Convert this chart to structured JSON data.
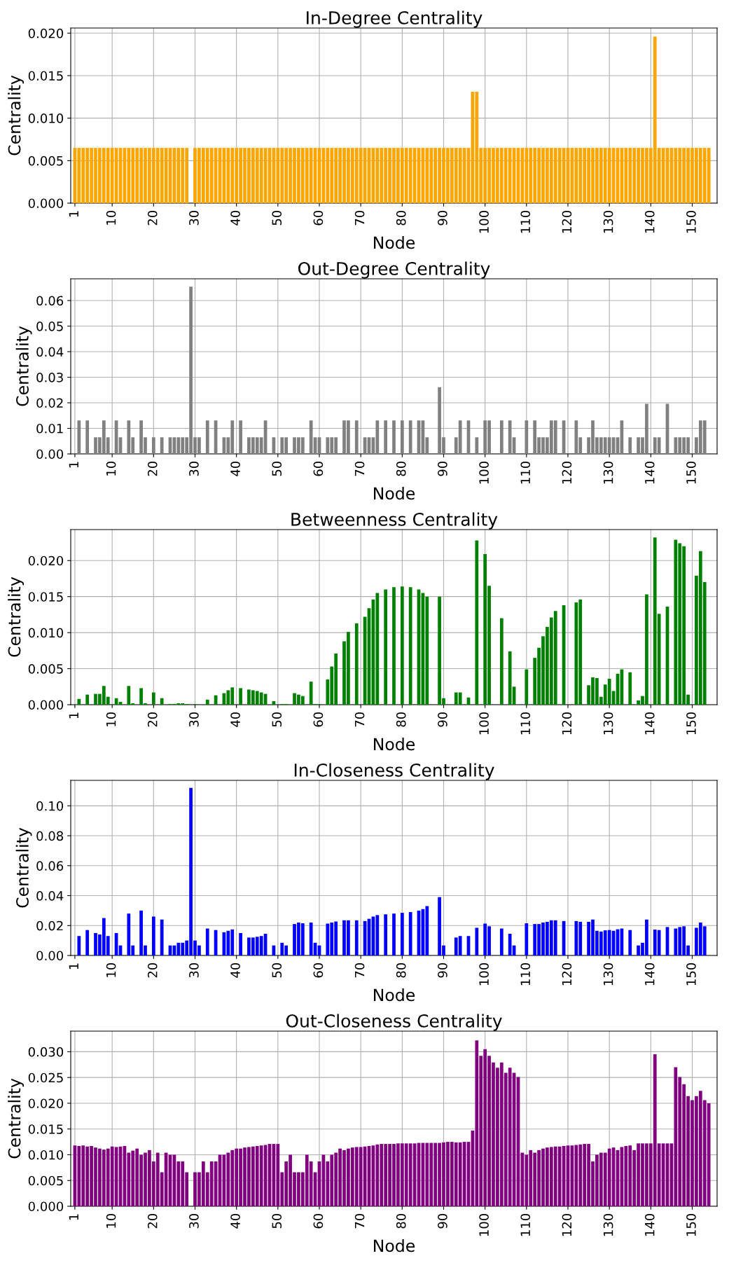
{
  "chart_data": [
    {
      "type": "bar",
      "title": "In-Degree Centrality",
      "xlabel": "Node",
      "ylabel": "Centrality",
      "color": "#ffa500",
      "grid": true,
      "x": [
        1,
        2,
        3,
        4,
        5,
        6,
        7,
        8,
        9,
        10,
        11,
        12,
        13,
        14,
        15,
        16,
        17,
        18,
        19,
        20,
        21,
        22,
        23,
        24,
        25,
        26,
        27,
        28,
        29,
        30,
        31,
        32,
        33,
        34,
        35,
        36,
        37,
        38,
        39,
        40,
        41,
        42,
        43,
        44,
        45,
        46,
        47,
        48,
        49,
        50,
        51,
        52,
        53,
        54,
        55,
        56,
        57,
        58,
        59,
        60,
        61,
        62,
        63,
        64,
        65,
        66,
        67,
        68,
        69,
        70,
        71,
        72,
        73,
        74,
        75,
        76,
        77,
        78,
        79,
        80,
        81,
        82,
        83,
        84,
        85,
        86,
        87,
        88,
        89,
        90,
        91,
        92,
        93,
        94,
        95,
        96,
        97,
        98,
        99,
        100,
        101,
        102,
        103,
        104,
        105,
        106,
        107,
        108,
        109,
        110,
        111,
        112,
        113,
        114,
        115,
        116,
        117,
        118,
        119,
        120,
        121,
        122,
        123,
        124,
        125,
        126,
        127,
        128,
        129,
        130,
        131,
        132,
        133,
        134,
        135,
        136,
        137,
        138,
        139,
        140,
        141,
        142,
        143,
        144,
        145,
        146,
        147,
        148,
        149,
        150,
        151,
        152,
        153,
        154
      ],
      "values": [
        0.0065,
        0.0065,
        0.0065,
        0.0065,
        0.0065,
        0.0065,
        0.0065,
        0.0065,
        0.0065,
        0.0065,
        0.0065,
        0.0065,
        0.0065,
        0.0065,
        0.0065,
        0.0065,
        0.0065,
        0.0065,
        0.0065,
        0.0065,
        0.0065,
        0.0065,
        0.0065,
        0.0065,
        0.0065,
        0.0065,
        0.0065,
        0.0065,
        0,
        0.0065,
        0.0065,
        0.0065,
        0.0065,
        0.0065,
        0.0065,
        0.0065,
        0.0065,
        0.0065,
        0.0065,
        0.0065,
        0.0065,
        0.0065,
        0.0065,
        0.0065,
        0.0065,
        0.0065,
        0.0065,
        0.0065,
        0.0065,
        0.0065,
        0.0065,
        0.0065,
        0.0065,
        0.0065,
        0.0065,
        0.0065,
        0.0065,
        0.0065,
        0.0065,
        0.0065,
        0.0065,
        0.0065,
        0.0065,
        0.0065,
        0.0065,
        0.0065,
        0.0065,
        0.0065,
        0.0065,
        0.0065,
        0.0065,
        0.0065,
        0.0065,
        0.0065,
        0.0065,
        0.0065,
        0.0065,
        0.0065,
        0.0065,
        0.0065,
        0.0065,
        0.0065,
        0.0065,
        0.0065,
        0.0065,
        0.0065,
        0.0065,
        0.0065,
        0.0065,
        0.0065,
        0.0065,
        0.0065,
        0.0065,
        0.0065,
        0.0065,
        0.0065,
        0.0131,
        0.0131,
        0.0065,
        0.0065,
        0.0065,
        0.0065,
        0.0065,
        0.0065,
        0.0065,
        0.0065,
        0.0065,
        0.0065,
        0.0065,
        0.0065,
        0.0065,
        0.0065,
        0.0065,
        0.0065,
        0.0065,
        0.0065,
        0.0065,
        0.0065,
        0.0065,
        0.0065,
        0.0065,
        0.0065,
        0.0065,
        0.0065,
        0.0065,
        0.0065,
        0.0065,
        0.0065,
        0.0065,
        0.0065,
        0.0065,
        0.0065,
        0.0065,
        0.0065,
        0.0065,
        0.0065,
        0.0065,
        0.0065,
        0.0065,
        0.0065,
        0.0196,
        0.0065,
        0.0065,
        0.0065,
        0.0065,
        0.0065,
        0.0065,
        0.0065,
        0.0065,
        0.0065,
        0.0065,
        0.0065,
        0.0065,
        0.0065
      ],
      "xlim": [
        0,
        156
      ],
      "xticks": [
        1,
        10,
        20,
        30,
        40,
        50,
        60,
        70,
        80,
        90,
        100,
        110,
        120,
        130,
        140,
        150
      ],
      "ylim": [
        0,
        0.0206
      ],
      "yticks": [
        {
          "value": 0,
          "label": "0.000"
        },
        {
          "value": 0.005,
          "label": "0.005"
        },
        {
          "value": 0.01,
          "label": "0.010"
        },
        {
          "value": 0.015,
          "label": "0.015"
        },
        {
          "value": 0.02,
          "label": "0.020"
        }
      ]
    },
    {
      "type": "bar",
      "title": "Out-Degree Centrality",
      "xlabel": "Node",
      "ylabel": "Centrality",
      "color": "#808080",
      "grid": true,
      "x": [
        1,
        2,
        3,
        4,
        5,
        6,
        7,
        8,
        9,
        10,
        11,
        12,
        13,
        14,
        15,
        16,
        17,
        18,
        19,
        20,
        21,
        22,
        23,
        24,
        25,
        26,
        27,
        28,
        29,
        30,
        31,
        32,
        33,
        34,
        35,
        36,
        37,
        38,
        39,
        40,
        41,
        42,
        43,
        44,
        45,
        46,
        47,
        48,
        49,
        50,
        51,
        52,
        53,
        54,
        55,
        56,
        57,
        58,
        59,
        60,
        61,
        62,
        63,
        64,
        65,
        66,
        67,
        68,
        69,
        70,
        71,
        72,
        73,
        74,
        75,
        76,
        77,
        78,
        79,
        80,
        81,
        82,
        83,
        84,
        85,
        86,
        87,
        88,
        89,
        90,
        91,
        92,
        93,
        94,
        95,
        96,
        97,
        98,
        99,
        100,
        101,
        102,
        103,
        104,
        105,
        106,
        107,
        108,
        109,
        110,
        111,
        112,
        113,
        114,
        115,
        116,
        117,
        118,
        119,
        120,
        121,
        122,
        123,
        124,
        125,
        126,
        127,
        128,
        129,
        130,
        131,
        132,
        133,
        134,
        135,
        136,
        137,
        138,
        139,
        140,
        141,
        142,
        143,
        144,
        145,
        146,
        147,
        148,
        149,
        150,
        151,
        152,
        153,
        154
      ],
      "values": [
        0,
        0.0131,
        0,
        0.0131,
        0,
        0.0065,
        0.0065,
        0.0131,
        0.0065,
        0,
        0.0131,
        0.0065,
        0,
        0.0131,
        0.0065,
        0,
        0.0131,
        0.0065,
        0,
        0.0065,
        0,
        0.0065,
        0,
        0.0065,
        0.0065,
        0.0065,
        0.0065,
        0.0065,
        0.0654,
        0.0065,
        0.0065,
        0,
        0.0131,
        0,
        0.0131,
        0,
        0.0065,
        0.0065,
        0.0131,
        0,
        0.0131,
        0,
        0.0065,
        0.0065,
        0.0065,
        0.0065,
        0.0131,
        0,
        0.0065,
        0,
        0.0065,
        0.0065,
        0,
        0.0065,
        0.0065,
        0.0065,
        0,
        0.0131,
        0.0065,
        0.0065,
        0,
        0.0065,
        0.0065,
        0.0065,
        0,
        0.0131,
        0.0131,
        0,
        0.0131,
        0,
        0.0065,
        0.0065,
        0.0065,
        0.0131,
        0,
        0.0131,
        0,
        0.0131,
        0,
        0.0131,
        0,
        0.0131,
        0,
        0.0131,
        0.0131,
        0.0065,
        0,
        0,
        0.0261,
        0.0065,
        0,
        0,
        0.0065,
        0.0131,
        0,
        0.0131,
        0,
        0.0065,
        0,
        0.0131,
        0.0131,
        0,
        0,
        0.0131,
        0,
        0.0131,
        0.0065,
        0,
        0,
        0.0131,
        0,
        0.0131,
        0.0065,
        0.0065,
        0.0065,
        0.0131,
        0.0131,
        0,
        0.0131,
        0,
        0,
        0.0131,
        0.0065,
        0,
        0.0065,
        0.0131,
        0.0065,
        0.0065,
        0.0065,
        0.0065,
        0.0065,
        0.0065,
        0.0131,
        0,
        0.0065,
        0,
        0.0065,
        0.0065,
        0.0196,
        0,
        0.0065,
        0.0065,
        0,
        0.0196,
        0,
        0.0065,
        0.0065,
        0.0065,
        0.0065,
        0,
        0.0065,
        0.0131,
        0.0131,
        0
      ],
      "xlim": [
        0,
        156
      ],
      "xticks": [
        1,
        10,
        20,
        30,
        40,
        50,
        60,
        70,
        80,
        90,
        100,
        110,
        120,
        130,
        140,
        150
      ],
      "ylim": [
        0,
        0.0685
      ],
      "yticks": [
        {
          "value": 0,
          "label": "0.00"
        },
        {
          "value": 0.01,
          "label": "0.01"
        },
        {
          "value": 0.02,
          "label": "0.02"
        },
        {
          "value": 0.03,
          "label": "0.03"
        },
        {
          "value": 0.04,
          "label": "0.04"
        },
        {
          "value": 0.05,
          "label": "0.05"
        },
        {
          "value": 0.06,
          "label": "0.06"
        }
      ]
    },
    {
      "type": "bar",
      "title": "Betweenness Centrality",
      "xlabel": "Node",
      "ylabel": "Centrality",
      "color": "#008000",
      "grid": true,
      "x": [
        1,
        2,
        3,
        4,
        5,
        6,
        7,
        8,
        9,
        10,
        11,
        12,
        13,
        14,
        15,
        16,
        17,
        18,
        19,
        20,
        21,
        22,
        23,
        24,
        25,
        26,
        27,
        28,
        29,
        30,
        31,
        32,
        33,
        34,
        35,
        36,
        37,
        38,
        39,
        40,
        41,
        42,
        43,
        44,
        45,
        46,
        47,
        48,
        49,
        50,
        51,
        52,
        53,
        54,
        55,
        56,
        57,
        58,
        59,
        60,
        61,
        62,
        63,
        64,
        65,
        66,
        67,
        68,
        69,
        70,
        71,
        72,
        73,
        74,
        75,
        76,
        77,
        78,
        79,
        80,
        81,
        82,
        83,
        84,
        85,
        86,
        87,
        88,
        89,
        90,
        91,
        92,
        93,
        94,
        95,
        96,
        97,
        98,
        99,
        100,
        101,
        102,
        103,
        104,
        105,
        106,
        107,
        108,
        109,
        110,
        111,
        112,
        113,
        114,
        115,
        116,
        117,
        118,
        119,
        120,
        121,
        122,
        123,
        124,
        125,
        126,
        127,
        128,
        129,
        130,
        131,
        132,
        133,
        134,
        135,
        136,
        137,
        138,
        139,
        140,
        141,
        142,
        143,
        144,
        145,
        146,
        147,
        148,
        149,
        150,
        151,
        152,
        153,
        154
      ],
      "values": [
        0,
        0.0008,
        0,
        0.0014,
        0,
        0.0015,
        0.0015,
        0.0026,
        0.0011,
        0,
        0.0009,
        0.0004,
        0,
        0.0026,
        0.0002,
        0,
        0.0023,
        0.0002,
        0,
        0.0017,
        0,
        0.0009,
        0,
        0.0001,
        0.0001,
        0.0002,
        0.0002,
        0.0001,
        0,
        0.0001,
        0,
        0,
        0.0007,
        0,
        0.0013,
        0,
        0.0016,
        0.002,
        0.0024,
        0,
        0.0023,
        0,
        0.0021,
        0.002,
        0.0019,
        0.0017,
        0.0015,
        0,
        0.0005,
        0,
        0.0001,
        0.0001,
        0,
        0.0016,
        0.0014,
        0.0012,
        0,
        0.0032,
        0.0001,
        0.0001,
        0,
        0.0035,
        0.0053,
        0.0071,
        0,
        0.0088,
        0.0101,
        0,
        0.0113,
        0,
        0.0122,
        0.0134,
        0.0146,
        0.0155,
        0,
        0.016,
        0,
        0.0163,
        0,
        0.0164,
        0,
        0.0163,
        0,
        0.016,
        0.0155,
        0.015,
        0,
        0,
        0.015,
        0.0009,
        0,
        0,
        0.0017,
        0.0017,
        0,
        0.001,
        0,
        0.0228,
        0,
        0.0209,
        0.0165,
        0,
        0,
        0.012,
        0,
        0.0074,
        0.0025,
        0,
        0,
        0.0049,
        0,
        0.0065,
        0.0079,
        0.0095,
        0.0108,
        0.0121,
        0.013,
        0,
        0.0138,
        0,
        0,
        0.0142,
        0.0146,
        0,
        0.0027,
        0.0038,
        0.0037,
        0.0011,
        0.0028,
        0.0036,
        0.0019,
        0.0043,
        0.0049,
        0,
        0.0045,
        0,
        0.0006,
        0.0012,
        0.0153,
        0,
        0.0232,
        0.0126,
        0,
        0.0136,
        0,
        0.0229,
        0.0224,
        0.022,
        0.0014,
        0,
        0.0179,
        0.0213,
        0.017,
        0
      ],
      "xlim": [
        0,
        156
      ],
      "xticks": [
        1,
        10,
        20,
        30,
        40,
        50,
        60,
        70,
        80,
        90,
        100,
        110,
        120,
        130,
        140,
        150
      ],
      "ylim": [
        0,
        0.0243
      ],
      "yticks": [
        {
          "value": 0,
          "label": "0.000"
        },
        {
          "value": 0.005,
          "label": "0.005"
        },
        {
          "value": 0.01,
          "label": "0.010"
        },
        {
          "value": 0.015,
          "label": "0.015"
        },
        {
          "value": 0.02,
          "label": "0.020"
        }
      ]
    },
    {
      "type": "bar",
      "title": "In-Closeness Centrality",
      "xlabel": "Node",
      "ylabel": "Centrality",
      "color": "#0000ff",
      "grid": true,
      "x": [
        1,
        2,
        3,
        4,
        5,
        6,
        7,
        8,
        9,
        10,
        11,
        12,
        13,
        14,
        15,
        16,
        17,
        18,
        19,
        20,
        21,
        22,
        23,
        24,
        25,
        26,
        27,
        28,
        29,
        30,
        31,
        32,
        33,
        34,
        35,
        36,
        37,
        38,
        39,
        40,
        41,
        42,
        43,
        44,
        45,
        46,
        47,
        48,
        49,
        50,
        51,
        52,
        53,
        54,
        55,
        56,
        57,
        58,
        59,
        60,
        61,
        62,
        63,
        64,
        65,
        66,
        67,
        68,
        69,
        70,
        71,
        72,
        73,
        74,
        75,
        76,
        77,
        78,
        79,
        80,
        81,
        82,
        83,
        84,
        85,
        86,
        87,
        88,
        89,
        90,
        91,
        92,
        93,
        94,
        95,
        96,
        97,
        98,
        99,
        100,
        101,
        102,
        103,
        104,
        105,
        106,
        107,
        108,
        109,
        110,
        111,
        112,
        113,
        114,
        115,
        116,
        117,
        118,
        119,
        120,
        121,
        122,
        123,
        124,
        125,
        126,
        127,
        128,
        129,
        130,
        131,
        132,
        133,
        134,
        135,
        136,
        137,
        138,
        139,
        140,
        141,
        142,
        143,
        144,
        145,
        146,
        147,
        148,
        149,
        150,
        151,
        152,
        153,
        154
      ],
      "values": [
        0,
        0.013,
        0,
        0.017,
        0,
        0.015,
        0.014,
        0.025,
        0.013,
        0,
        0.015,
        0.0067,
        0,
        0.028,
        0.0067,
        0,
        0.03,
        0.0067,
        0,
        0.026,
        0,
        0.024,
        0,
        0.0067,
        0.0067,
        0.0085,
        0.0085,
        0.01,
        0.112,
        0.01,
        0.0067,
        0,
        0.018,
        0,
        0.017,
        0,
        0.0155,
        0.0165,
        0.0174,
        0,
        0.015,
        0,
        0.012,
        0.012,
        0.0125,
        0.013,
        0.0145,
        0,
        0.0067,
        0,
        0.0085,
        0.0067,
        0,
        0.021,
        0.022,
        0.0215,
        0,
        0.022,
        0.0085,
        0.0067,
        0,
        0.0213,
        0.022,
        0.0227,
        0,
        0.0235,
        0.0235,
        0,
        0.0235,
        0,
        0.023,
        0.0245,
        0.026,
        0.027,
        0,
        0.0275,
        0,
        0.028,
        0,
        0.0285,
        0,
        0.029,
        0,
        0.03,
        0.031,
        0.033,
        0,
        0,
        0.039,
        0.0067,
        0,
        0,
        0.012,
        0.013,
        0,
        0.013,
        0,
        0.0185,
        0,
        0.0213,
        0.0195,
        0,
        0,
        0.018,
        0,
        0.0145,
        0.0067,
        0,
        0,
        0.0215,
        0,
        0.021,
        0.021,
        0.022,
        0.0225,
        0.0235,
        0.0235,
        0,
        0.023,
        0,
        0,
        0.023,
        0.0225,
        0,
        0.0225,
        0.024,
        0.0165,
        0.016,
        0.0168,
        0.017,
        0.0165,
        0.0175,
        0.018,
        0,
        0.017,
        0,
        0.0067,
        0.0085,
        0.024,
        0,
        0.0173,
        0.017,
        0,
        0.019,
        0,
        0.018,
        0.019,
        0.0195,
        0.0067,
        0,
        0.0185,
        0.022,
        0.0195,
        0
      ],
      "xlim": [
        0,
        156
      ],
      "xticks": [
        1,
        10,
        20,
        30,
        40,
        50,
        60,
        70,
        80,
        90,
        100,
        110,
        120,
        130,
        140,
        150
      ],
      "ylim": [
        0,
        0.117
      ],
      "yticks": [
        {
          "value": 0,
          "label": "0.00"
        },
        {
          "value": 0.02,
          "label": "0.02"
        },
        {
          "value": 0.04,
          "label": "0.04"
        },
        {
          "value": 0.06,
          "label": "0.06"
        },
        {
          "value": 0.08,
          "label": "0.08"
        },
        {
          "value": 0.1,
          "label": "0.10"
        }
      ]
    },
    {
      "type": "bar",
      "title": "Out-Closeness Centrality",
      "xlabel": "Node",
      "ylabel": "Centrality",
      "color": "#800080",
      "grid": true,
      "x": [
        1,
        2,
        3,
        4,
        5,
        6,
        7,
        8,
        9,
        10,
        11,
        12,
        13,
        14,
        15,
        16,
        17,
        18,
        19,
        20,
        21,
        22,
        23,
        24,
        25,
        26,
        27,
        28,
        29,
        30,
        31,
        32,
        33,
        34,
        35,
        36,
        37,
        38,
        39,
        40,
        41,
        42,
        43,
        44,
        45,
        46,
        47,
        48,
        49,
        50,
        51,
        52,
        53,
        54,
        55,
        56,
        57,
        58,
        59,
        60,
        61,
        62,
        63,
        64,
        65,
        66,
        67,
        68,
        69,
        70,
        71,
        72,
        73,
        74,
        75,
        76,
        77,
        78,
        79,
        80,
        81,
        82,
        83,
        84,
        85,
        86,
        87,
        88,
        89,
        90,
        91,
        92,
        93,
        94,
        95,
        96,
        97,
        98,
        99,
        100,
        101,
        102,
        103,
        104,
        105,
        106,
        107,
        108,
        109,
        110,
        111,
        112,
        113,
        114,
        115,
        116,
        117,
        118,
        119,
        120,
        121,
        122,
        123,
        124,
        125,
        126,
        127,
        128,
        129,
        130,
        131,
        132,
        133,
        134,
        135,
        136,
        137,
        138,
        139,
        140,
        141,
        142,
        143,
        144,
        145,
        146,
        147,
        148,
        149,
        150,
        151,
        152,
        153,
        154
      ],
      "values": [
        0.0118,
        0.0117,
        0.0118,
        0.0116,
        0.0117,
        0.0114,
        0.0112,
        0.011,
        0.0112,
        0.0116,
        0.0115,
        0.0116,
        0.0117,
        0.0104,
        0.0108,
        0.0112,
        0.01,
        0.0104,
        0.0109,
        0.0087,
        0.0104,
        0.0066,
        0.0104,
        0.01,
        0.01,
        0.0087,
        0.0087,
        0.0066,
        0,
        0.0066,
        0.0066,
        0.0087,
        0.0066,
        0.0087,
        0.0087,
        0.01,
        0.01,
        0.0104,
        0.0109,
        0.0112,
        0.0112,
        0.0114,
        0.0115,
        0.0116,
        0.0117,
        0.0118,
        0.0119,
        0.0121,
        0.0121,
        0.0121,
        0.0066,
        0.0087,
        0.01,
        0.0066,
        0.0066,
        0.0066,
        0.01,
        0.0087,
        0.0066,
        0.0087,
        0.01,
        0.0087,
        0.01,
        0.0104,
        0.0112,
        0.0109,
        0.0112,
        0.0114,
        0.0115,
        0.0115,
        0.0116,
        0.0117,
        0.0118,
        0.012,
        0.0121,
        0.0121,
        0.0121,
        0.0121,
        0.0122,
        0.0122,
        0.0122,
        0.0122,
        0.0122,
        0.0123,
        0.0123,
        0.0123,
        0.0123,
        0.0123,
        0.0123,
        0.0124,
        0.0125,
        0.0125,
        0.0124,
        0.0124,
        0.0125,
        0.0125,
        0.0147,
        0.0322,
        0.0292,
        0.0305,
        0.0292,
        0.0279,
        0.0269,
        0.0279,
        0.0259,
        0.0269,
        0.0259,
        0.0251,
        0.0104,
        0.01,
        0.0109,
        0.0104,
        0.0109,
        0.0112,
        0.0114,
        0.0115,
        0.0116,
        0.0116,
        0.0117,
        0.0118,
        0.0118,
        0.0119,
        0.012,
        0.0121,
        0.0121,
        0.0087,
        0.01,
        0.0104,
        0.0104,
        0.0112,
        0.0114,
        0.0109,
        0.0115,
        0.0117,
        0.0118,
        0.0109,
        0.0122,
        0.0122,
        0.0122,
        0.0122,
        0.0295,
        0.0122,
        0.0122,
        0.0122,
        0.0122,
        0.027,
        0.0251,
        0.0237,
        0.0214,
        0.0206,
        0.0214,
        0.0224,
        0.0206,
        0.02
      ],
      "xlim": [
        0,
        156
      ],
      "xticks": [
        1,
        10,
        20,
        30,
        40,
        50,
        60,
        70,
        80,
        90,
        100,
        110,
        120,
        130,
        140,
        150
      ],
      "ylim": [
        0,
        0.034
      ],
      "yticks": [
        {
          "value": 0,
          "label": "0.000"
        },
        {
          "value": 0.005,
          "label": "0.005"
        },
        {
          "value": 0.01,
          "label": "0.010"
        },
        {
          "value": 0.015,
          "label": "0.015"
        },
        {
          "value": 0.02,
          "label": "0.020"
        },
        {
          "value": 0.025,
          "label": "0.025"
        },
        {
          "value": 0.03,
          "label": "0.030"
        }
      ]
    }
  ]
}
